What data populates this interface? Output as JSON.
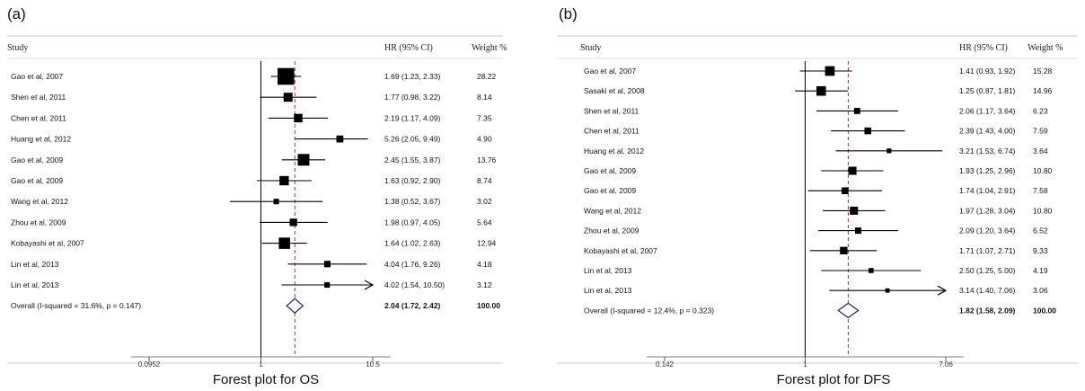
{
  "figure": {
    "panel_a_letter": "(a)",
    "panel_b_letter": "(b)",
    "caption_a": "Forest plot for OS",
    "caption_b": "Forest plot for DFS"
  },
  "chart_data": [
    {
      "type": "forest",
      "headers": {
        "study": "Study",
        "hr": "HR (95% CI)",
        "weight": "Weight %"
      },
      "axis_ticks": [
        "0.0952",
        "1",
        "10.5"
      ],
      "log_scale": true,
      "xlim": [
        0.0952,
        10.5
      ],
      "overall_line_value": 2.04,
      "studies": [
        {
          "study": "Gao et al, 2007",
          "hr": 1.69,
          "lo": 1.23,
          "hi": 2.33,
          "hr_text": "1.69 (1.23, 2.33)",
          "weight": "28.22"
        },
        {
          "study": "Shen et al, 2011",
          "hr": 1.77,
          "lo": 0.98,
          "hi": 3.22,
          "hr_text": "1.77 (0.98, 3.22)",
          "weight": "8.14"
        },
        {
          "study": "Chen et al, 2011",
          "hr": 2.19,
          "lo": 1.17,
          "hi": 4.09,
          "hr_text": "2.19 (1.17, 4.09)",
          "weight": "7.35"
        },
        {
          "study": "Huang et al, 2012",
          "hr": 5.26,
          "lo": 2.05,
          "hi": 9.49,
          "hr_text": "5.26 (2.05, 9.49)",
          "weight": "4.90"
        },
        {
          "study": "Gao et al, 2009",
          "hr": 2.45,
          "lo": 1.55,
          "hi": 3.87,
          "hr_text": "2.45 (1.55, 3.87)",
          "weight": "13.76"
        },
        {
          "study": "Gao et al, 2009",
          "hr": 1.63,
          "lo": 0.92,
          "hi": 2.9,
          "hr_text": "1.63 (0.92, 2.90)",
          "weight": "8.74"
        },
        {
          "study": "Wang et al, 2012",
          "hr": 1.38,
          "lo": 0.52,
          "hi": 3.67,
          "hr_text": "1.38 (0.52, 3.67)",
          "weight": "3.02"
        },
        {
          "study": "Zhou et al, 2009",
          "hr": 1.98,
          "lo": 0.97,
          "hi": 4.05,
          "hr_text": "1.98 (0.97, 4.05)",
          "weight": "5.64"
        },
        {
          "study": "Kobayashi et al, 2007",
          "hr": 1.64,
          "lo": 1.02,
          "hi": 2.63,
          "hr_text": "1.64 (1.02, 2.63)",
          "weight": "12.94"
        },
        {
          "study": "Lin et al, 2013",
          "hr": 4.04,
          "lo": 1.76,
          "hi": 9.26,
          "hr_text": "4.04 (1.76, 9.26)",
          "weight": "4.18"
        },
        {
          "study": "Lin et al, 2013",
          "hr": 4.02,
          "lo": 1.54,
          "hi": 10.5,
          "hr_text": "4.02 (1.54, 10.50)",
          "weight": "3.12"
        }
      ],
      "overall": {
        "label": "Overall  (I-squared = 31.6%, p = 0.147)",
        "hr": 2.04,
        "lo": 1.72,
        "hi": 2.42,
        "hr_text": "2.04 (1.72, 2.42)",
        "weight": "100.00"
      }
    },
    {
      "type": "forest",
      "headers": {
        "study": "Study",
        "hr": "HR (95% CI)",
        "weight": "Weight %"
      },
      "axis_ticks": [
        "0.142",
        "1",
        "7.06"
      ],
      "log_scale": true,
      "xlim": [
        0.142,
        7.06
      ],
      "overall_line_value": 1.82,
      "studies": [
        {
          "study": "Gao et al, 2007",
          "hr": 1.41,
          "lo": 0.93,
          "hi": 1.92,
          "hr_text": "1.41 (0.93, 1.92)",
          "weight": "15.28"
        },
        {
          "study": "Sasaki et al, 2008",
          "hr": 1.25,
          "lo": 0.87,
          "hi": 1.81,
          "hr_text": "1.25 (0.87, 1.81)",
          "weight": "14.96"
        },
        {
          "study": "Shen et al, 2011",
          "hr": 2.06,
          "lo": 1.17,
          "hi": 3.64,
          "hr_text": "2.06 (1.17, 3.64)",
          "weight": "6.23"
        },
        {
          "study": "Chen et al, 2011",
          "hr": 2.39,
          "lo": 1.43,
          "hi": 4.0,
          "hr_text": "2.39 (1.43, 4.00)",
          "weight": "7.59"
        },
        {
          "study": "Huang et al, 2012",
          "hr": 3.21,
          "lo": 1.53,
          "hi": 6.74,
          "hr_text": "3.21 (1.53, 6.74)",
          "weight": "3.64"
        },
        {
          "study": "Gao et al, 2009",
          "hr": 1.93,
          "lo": 1.25,
          "hi": 2.96,
          "hr_text": "1.93 (1.25, 2.96)",
          "weight": "10.80"
        },
        {
          "study": "Gao et al, 2009",
          "hr": 1.74,
          "lo": 1.04,
          "hi": 2.91,
          "hr_text": "1.74 (1.04, 2.91)",
          "weight": "7.58"
        },
        {
          "study": "Wang et al, 2012",
          "hr": 1.97,
          "lo": 1.28,
          "hi": 3.04,
          "hr_text": "1.97 (1.28, 3.04)",
          "weight": "10.80"
        },
        {
          "study": "Zhou et al, 2009",
          "hr": 2.09,
          "lo": 1.2,
          "hi": 3.64,
          "hr_text": "2.09 (1.20, 3.64)",
          "weight": "6.52"
        },
        {
          "study": "Kobayashi et al, 2007",
          "hr": 1.71,
          "lo": 1.07,
          "hi": 2.71,
          "hr_text": "1.71 (1.07, 2.71)",
          "weight": "9.33"
        },
        {
          "study": "Lin et al, 2013",
          "hr": 2.5,
          "lo": 1.25,
          "hi": 5.0,
          "hr_text": "2.50 (1.25, 5.00)",
          "weight": "4.19"
        },
        {
          "study": "Lin et al, 2013",
          "hr": 3.14,
          "lo": 1.4,
          "hi": 7.06,
          "hr_text": "3.14 (1.40, 7.06)",
          "weight": "3.06"
        }
      ],
      "overall": {
        "label": "Overall  (I-squared = 12.4%, p = 0.323)",
        "hr": 1.82,
        "lo": 1.58,
        "hi": 2.09,
        "hr_text": "1.82 (1.58, 2.09)",
        "weight": "100.00"
      }
    }
  ]
}
